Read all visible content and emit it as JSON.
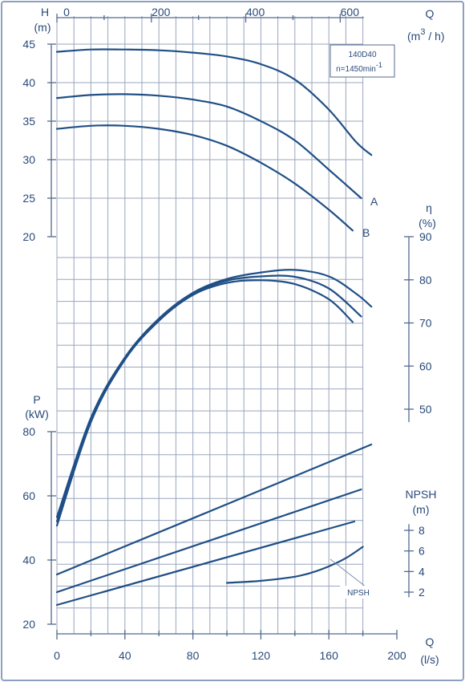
{
  "chart_data": {
    "type": "line",
    "model_label": "140D40",
    "speed_label": "n=1450min",
    "speed_exp": "-1",
    "axes": {
      "q_top": {
        "label": "Q",
        "unit_pre": "(m",
        "unit_exp": "3",
        "unit_post": " / h)",
        "ticks": [
          "0",
          "200",
          "400",
          "600"
        ]
      },
      "q_bottom": {
        "label": "Q",
        "unit": "(l/s)",
        "ticks": [
          "0",
          "40",
          "80",
          "120",
          "160",
          "200"
        ]
      },
      "head": {
        "label": "H",
        "unit": "(m)",
        "ticks": [
          "20",
          "25",
          "30",
          "35",
          "40",
          "45"
        ],
        "range": [
          20,
          45
        ]
      },
      "efficiency": {
        "label": "η",
        "unit": "(%)",
        "ticks": [
          "50",
          "60",
          "70",
          "80",
          "90"
        ],
        "range": [
          50,
          90
        ]
      },
      "power": {
        "label": "P",
        "unit": "(kW)",
        "ticks": [
          "20",
          "40",
          "60",
          "80"
        ],
        "range": [
          20,
          80
        ]
      },
      "npsh": {
        "label": "NPSH",
        "unit": "(m)",
        "ticks": [
          "2",
          "4",
          "6",
          "8"
        ],
        "range": [
          2,
          8
        ]
      }
    },
    "head_curves": [
      {
        "name": "",
        "points": [
          [
            0,
            44
          ],
          [
            20,
            44.3
          ],
          [
            40,
            44.3
          ],
          [
            60,
            44.2
          ],
          [
            80,
            43.9
          ],
          [
            100,
            43.4
          ],
          [
            120,
            42.4
          ],
          [
            140,
            40.4
          ],
          [
            160,
            36.5
          ],
          [
            176,
            32.3
          ],
          [
            185,
            30.6
          ]
        ]
      },
      {
        "name": "A",
        "points": [
          [
            0,
            38
          ],
          [
            20,
            38.4
          ],
          [
            40,
            38.5
          ],
          [
            60,
            38.3
          ],
          [
            80,
            37.8
          ],
          [
            100,
            36.9
          ],
          [
            120,
            35
          ],
          [
            140,
            32.5
          ],
          [
            160,
            28.7
          ],
          [
            179,
            25
          ]
        ]
      },
      {
        "name": "B",
        "points": [
          [
            0,
            34
          ],
          [
            20,
            34.4
          ],
          [
            40,
            34.4
          ],
          [
            60,
            34
          ],
          [
            80,
            33.2
          ],
          [
            100,
            31.8
          ],
          [
            120,
            29.6
          ],
          [
            140,
            26.9
          ],
          [
            160,
            23.5
          ],
          [
            174,
            20.8
          ]
        ]
      }
    ],
    "efficiency_curves": [
      {
        "name": "",
        "points": [
          [
            0,
            25
          ],
          [
            20,
            48
          ],
          [
            40,
            62
          ],
          [
            60,
            71
          ],
          [
            80,
            77
          ],
          [
            100,
            80.2
          ],
          [
            120,
            81.7
          ],
          [
            140,
            82.3
          ],
          [
            160,
            80.8
          ],
          [
            176,
            76.8
          ],
          [
            185,
            73.8
          ]
        ]
      },
      {
        "name": "A",
        "points": [
          [
            0,
            24
          ],
          [
            20,
            47.5
          ],
          [
            40,
            61.7
          ],
          [
            60,
            70.7
          ],
          [
            80,
            76.8
          ],
          [
            100,
            79.8
          ],
          [
            120,
            80.8
          ],
          [
            140,
            80.7
          ],
          [
            160,
            78
          ],
          [
            179,
            71.5
          ]
        ]
      },
      {
        "name": "B",
        "points": [
          [
            0,
            23
          ],
          [
            20,
            47
          ],
          [
            40,
            61.5
          ],
          [
            60,
            70.5
          ],
          [
            80,
            76.5
          ],
          [
            100,
            79.3
          ],
          [
            120,
            79.9
          ],
          [
            140,
            79
          ],
          [
            160,
            75.5
          ],
          [
            174,
            70.2
          ]
        ]
      }
    ],
    "power_curves": [
      {
        "name": "",
        "points": [
          [
            0,
            35.5
          ],
          [
            185,
            76
          ]
        ]
      },
      {
        "name": "A",
        "points": [
          [
            0,
            30
          ],
          [
            179,
            62
          ]
        ]
      },
      {
        "name": "B",
        "points": [
          [
            0,
            26
          ],
          [
            175,
            52
          ]
        ]
      }
    ],
    "npsh_curve": {
      "label": "NPSH",
      "points": [
        [
          100,
          2.9
        ],
        [
          120,
          3.1
        ],
        [
          140,
          3.5
        ],
        [
          150,
          3.9
        ],
        [
          160,
          4.5
        ],
        [
          170,
          5.3
        ],
        [
          180,
          6.4
        ]
      ]
    },
    "curve_labels": [
      "A",
      "B"
    ]
  }
}
